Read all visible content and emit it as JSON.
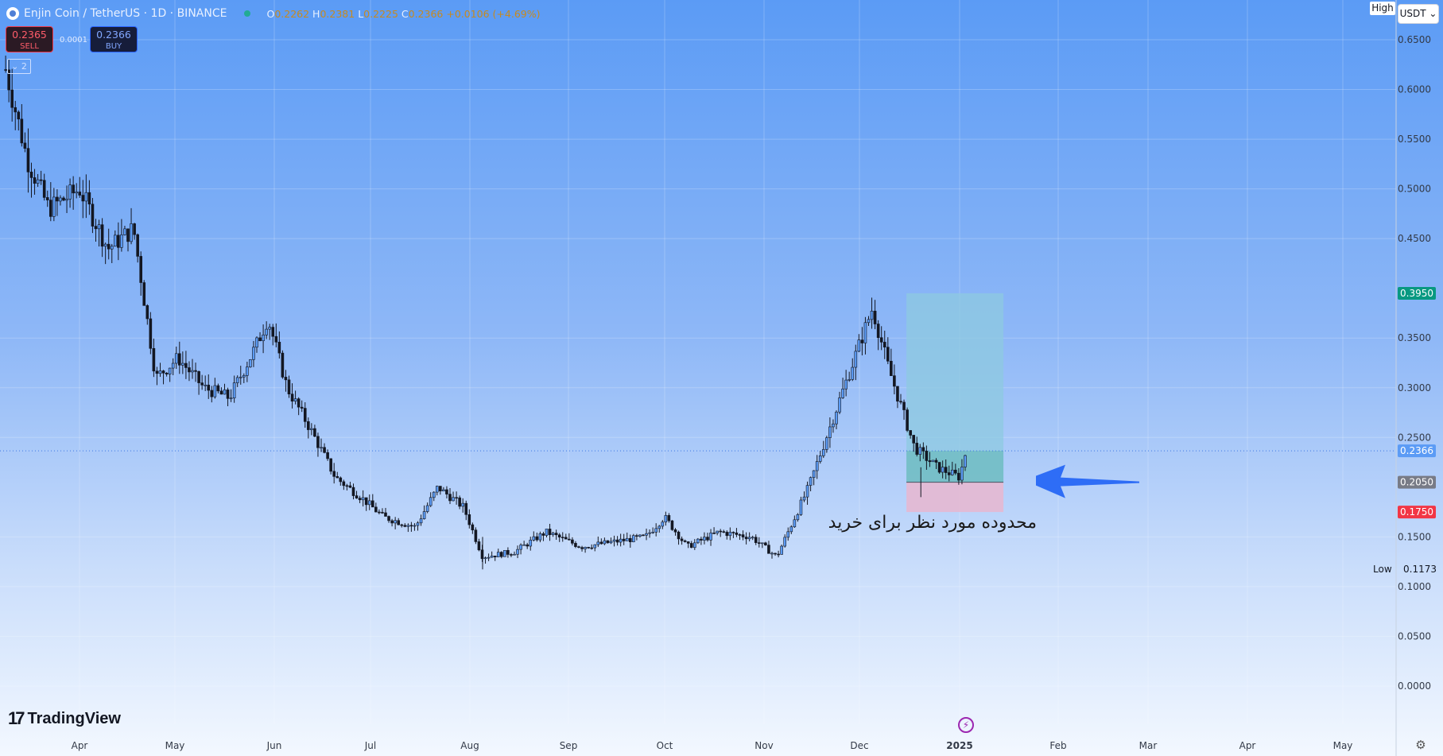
{
  "header": {
    "symbol": "Enjin Coin / TetherUS · 1D · BINANCE",
    "ohlc": {
      "o": "0.2262",
      "h": "0.2381",
      "l": "0.2225",
      "c": "0.2366",
      "change": "+0.0106 (+4.69%)"
    }
  },
  "trade": {
    "sell_price": "0.2365",
    "sell_label": "SELL",
    "buy_price": "0.2366",
    "buy_label": "BUY",
    "spread": "0.0001"
  },
  "indicator_toggle": "2",
  "axis": {
    "currency": "USDT",
    "high_label": "High",
    "low_label": "Low",
    "low_value": "0.1173",
    "price_ticks": [
      "0.6500",
      "0.6000",
      "0.5500",
      "0.5000",
      "0.4500",
      "0.3500",
      "0.3000",
      "0.2500",
      "0.1500",
      "0.1000",
      "0.0500",
      "0.0000"
    ],
    "time_ticks": [
      "Apr",
      "May",
      "Jun",
      "Jul",
      "Aug",
      "Sep",
      "Oct",
      "Nov",
      "Dec",
      "2025",
      "Feb",
      "Mar",
      "Apr",
      "May"
    ]
  },
  "price_tags": {
    "target": "0.3950",
    "current": "0.2366",
    "entry": "0.2050",
    "stop": "0.1750"
  },
  "colors": {
    "target": "#089981",
    "current": "#5b9bf5",
    "entry": "#787b86",
    "stop": "#f23645",
    "profit_zone": "#8ec9e0",
    "loss_zone": "#e6b8d2",
    "arrow": "#2e6df6"
  },
  "annotation": "محدوده مورد نظر برای خرید",
  "brand": "TradingView",
  "chart_data": {
    "type": "candlestick",
    "title": "Enjin Coin / TetherUS · 1D · BINANCE",
    "ylim": [
      0,
      0.69
    ],
    "x_labels": [
      "Apr",
      "May",
      "Jun",
      "Jul",
      "Aug",
      "Sep",
      "Oct",
      "Nov",
      "Dec",
      "2025",
      "Feb",
      "Mar",
      "Apr",
      "May"
    ],
    "close_path": [
      [
        "Mar 08",
        0.62
      ],
      [
        "Mar 15",
        0.53
      ],
      [
        "Mar 22",
        0.48
      ],
      [
        "Apr 01",
        0.5
      ],
      [
        "Apr 10",
        0.44
      ],
      [
        "Apr 18",
        0.46
      ],
      [
        "Apr 25",
        0.31
      ],
      [
        "May 02",
        0.33
      ],
      [
        "May 10",
        0.3
      ],
      [
        "May 18",
        0.29
      ],
      [
        "May 26",
        0.34
      ],
      [
        "May 30",
        0.37
      ],
      [
        "Jun 05",
        0.3
      ],
      [
        "Jun 12",
        0.26
      ],
      [
        "Jun 20",
        0.21
      ],
      [
        "Jun 28",
        0.19
      ],
      [
        "Jul 05",
        0.17
      ],
      [
        "Jul 15",
        0.16
      ],
      [
        "Jul 22",
        0.2
      ],
      [
        "Jul 30",
        0.18
      ],
      [
        "Aug 05",
        0.13
      ],
      [
        "Aug 15",
        0.135
      ],
      [
        "Aug 25",
        0.155
      ],
      [
        "Sep 05",
        0.14
      ],
      [
        "Sep 15",
        0.145
      ],
      [
        "Sep 25",
        0.15
      ],
      [
        "Oct 01",
        0.17
      ],
      [
        "Oct 08",
        0.14
      ],
      [
        "Oct 18",
        0.155
      ],
      [
        "Oct 28",
        0.15
      ],
      [
        "Nov 05",
        0.13
      ],
      [
        "Nov 15",
        0.2
      ],
      [
        "Nov 25",
        0.29
      ],
      [
        "Dec 05",
        0.38
      ],
      [
        "Dec 10",
        0.32
      ],
      [
        "Dec 18",
        0.24
      ],
      [
        "Dec 25",
        0.22
      ],
      [
        "Jan 01",
        0.21
      ],
      [
        "Jan 03",
        0.2366
      ]
    ],
    "annotations": {
      "target": 0.395,
      "entry": 0.205,
      "stop": 0.175,
      "current": 0.2366,
      "low": 0.1173,
      "note": "محدوده مورد نظر برای خرید"
    }
  }
}
